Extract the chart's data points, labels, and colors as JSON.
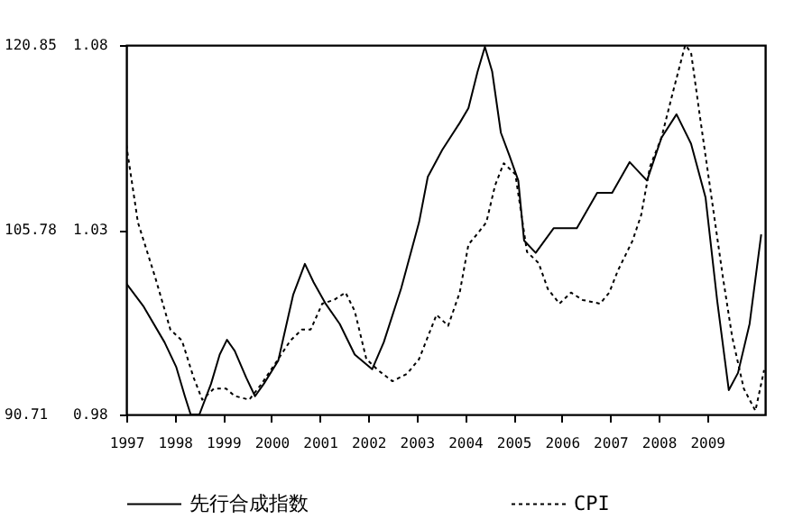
{
  "chart_data": {
    "type": "line",
    "xlim": [
      1997,
      2010.2
    ],
    "xticks": [
      1997,
      1998,
      1999,
      2000,
      2001,
      2002,
      2003,
      2004,
      2005,
      2006,
      2007,
      2008,
      2009
    ],
    "ylim": [
      90.71,
      120.85
    ],
    "yticks": [
      90.71,
      105.78,
      120.85
    ],
    "y2lim": [
      0.98,
      1.08
    ],
    "y2ticks": [
      0.98,
      1.03,
      1.08
    ],
    "grid": false,
    "legend": "bottom",
    "marker": "none",
    "series": [
      {
        "name": "先行合成指数",
        "color": "#000000",
        "line_style": "solid",
        "x": [
          1997.0,
          1997.36,
          1997.79,
          1998.03,
          1998.21,
          1998.33,
          1998.51,
          1998.75,
          1998.93,
          1999.08,
          1999.24,
          1999.48,
          1999.66,
          1999.84,
          2000.14,
          2000.45,
          2000.69,
          2000.87,
          2001.11,
          2001.41,
          2001.72,
          2002.08,
          2002.32,
          2002.68,
          2003.05,
          2003.23,
          2003.53,
          2003.89,
          2004.07,
          2004.26,
          2004.41,
          2004.56,
          2004.74,
          2004.92,
          2005.1,
          2005.22,
          2005.46,
          2005.83,
          2006.31,
          2006.73,
          2007.04,
          2007.4,
          2007.76,
          2008.06,
          2008.37,
          2008.67,
          2008.97,
          2009.21,
          2009.45,
          2009.64,
          2009.88,
          2010.12
        ],
        "values": [
          101.4,
          99.5,
          96.6,
          94.6,
          92.2,
          90.71,
          90.71,
          93.2,
          95.6,
          96.8,
          95.9,
          93.7,
          92.2,
          93.2,
          95.1,
          100.5,
          103.0,
          101.5,
          99.8,
          98.1,
          95.6,
          94.4,
          96.6,
          101.0,
          106.4,
          110.1,
          112.3,
          114.5,
          115.7,
          118.7,
          120.7,
          118.7,
          113.7,
          111.8,
          109.8,
          104.9,
          103.9,
          105.9,
          105.9,
          108.8,
          108.8,
          111.3,
          109.8,
          113.3,
          115.2,
          112.8,
          108.4,
          100.0,
          92.7,
          94.1,
          98.1,
          105.4
        ]
      },
      {
        "name": "CPI",
        "color": "#000000",
        "line_style": "dotted",
        "axis": "y2",
        "x": [
          1997.0,
          1997.24,
          1997.6,
          1997.91,
          1998.15,
          1998.39,
          1998.57,
          1998.81,
          1999.06,
          1999.24,
          1999.54,
          1999.78,
          2000.14,
          2000.39,
          2000.63,
          2000.81,
          2001.05,
          2001.29,
          2001.53,
          2001.72,
          2001.96,
          2002.2,
          2002.5,
          2002.8,
          2003.05,
          2003.23,
          2003.41,
          2003.65,
          2003.89,
          2004.07,
          2004.26,
          2004.44,
          2004.62,
          2004.8,
          2005.04,
          2005.28,
          2005.52,
          2005.71,
          2005.95,
          2006.19,
          2006.43,
          2006.79,
          2006.98,
          2007.16,
          2007.46,
          2007.64,
          2007.82,
          2008.06,
          2008.31,
          2008.55,
          2008.67,
          2008.85,
          2009.09,
          2009.33,
          2009.52,
          2009.76,
          2010.0,
          2010.18
        ],
        "values": [
          1.053,
          1.032,
          1.017,
          1.003,
          1.0,
          0.99,
          0.984,
          0.987,
          0.987,
          0.985,
          0.984,
          0.988,
          0.995,
          1.0,
          1.003,
          1.003,
          1.01,
          1.011,
          1.013,
          1.008,
          0.995,
          0.992,
          0.989,
          0.991,
          0.995,
          1.001,
          1.007,
          1.004,
          1.013,
          1.026,
          1.029,
          1.032,
          1.042,
          1.048,
          1.045,
          1.024,
          1.021,
          1.014,
          1.01,
          1.013,
          1.011,
          1.01,
          1.013,
          1.019,
          1.027,
          1.034,
          1.047,
          1.055,
          1.068,
          1.08,
          1.078,
          1.061,
          1.039,
          1.017,
          1.001,
          0.987,
          0.981,
          0.992
        ]
      }
    ]
  }
}
